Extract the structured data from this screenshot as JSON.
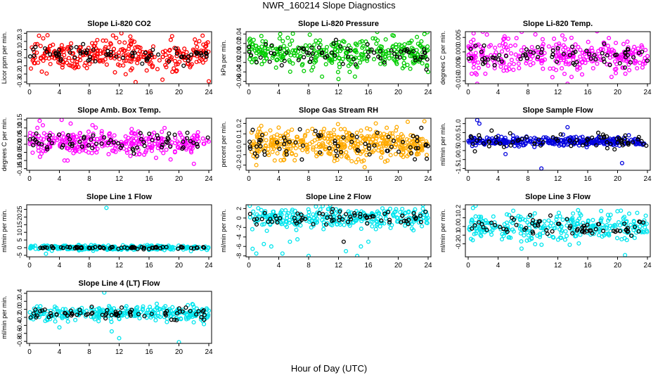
{
  "figure": {
    "title": "NWR_160214  Slope Diagnostics",
    "xlabel": "Hour of Day (UTC)"
  },
  "chart_data": [
    {
      "type": "scatter",
      "title": "Slope Li-820 CO2",
      "ylabel": "Licor ppm per min.",
      "xlim": [
        0,
        24
      ],
      "ylim": [
        -0.32,
        0.32
      ],
      "xticks": [
        "0",
        "4",
        "8",
        "12",
        "16",
        "20",
        "24"
      ],
      "yticks": [
        {
          "v": -0.3,
          "label": "-0.3"
        },
        {
          "v": -0.2,
          "label": "-0.2"
        },
        {
          "v": -0.1,
          "label": "-0.1"
        },
        {
          "v": 0.0,
          "label": "0.0"
        },
        {
          "v": 0.1,
          "label": "0.1"
        },
        {
          "v": 0.2,
          "label": "0.2"
        },
        {
          "v": 0.3,
          "label": "0.3"
        }
      ],
      "series": [
        {
          "color": "#ff0000",
          "center": 0.03,
          "spread": 0.09,
          "n": 320,
          "outliers": [
            [
              12.3,
              0.3
            ],
            [
              13.5,
              0.26
            ],
            [
              14.2,
              -0.3
            ],
            [
              17.8,
              -0.27
            ],
            [
              24,
              -0.29
            ]
          ]
        },
        {
          "color": "#000000",
          "center": 0.03,
          "spread": 0.06,
          "n": 70,
          "outliers": []
        }
      ]
    },
    {
      "type": "scatter",
      "title": "Slope Li-820 Pressure",
      "ylabel": "kPa per min.",
      "xlim": [
        0,
        24
      ],
      "ylim": [
        -0.065,
        0.045
      ],
      "xticks": [
        "0",
        "4",
        "8",
        "12",
        "16",
        "20",
        "24"
      ],
      "yticks": [
        {
          "v": -0.06,
          "label": "-0.06"
        },
        {
          "v": -0.04,
          "label": "-0.04"
        },
        {
          "v": -0.02,
          "label": "-0.02"
        },
        {
          "v": 0.0,
          "label": "0.00"
        },
        {
          "v": 0.02,
          "label": "0.02"
        },
        {
          "v": 0.04,
          "label": "0.04"
        }
      ],
      "series": [
        {
          "color": "#00cc00",
          "center": 0.0,
          "spread": 0.015,
          "n": 330,
          "outliers": [
            [
              4.2,
              0.04
            ],
            [
              9.8,
              -0.05
            ],
            [
              12.0,
              -0.055
            ],
            [
              13.5,
              -0.04
            ],
            [
              14.2,
              -0.05
            ],
            [
              23.5,
              0.04
            ],
            [
              24.0,
              -0.04
            ]
          ]
        },
        {
          "color": "#000000",
          "center": 0.0,
          "spread": 0.012,
          "n": 70,
          "outliers": []
        }
      ]
    },
    {
      "type": "scatter",
      "title": "Slope Li-820 Temp.",
      "ylabel": "degrees C per min.",
      "xlim": [
        0,
        24
      ],
      "ylim": [
        -0.011,
        0.007
      ],
      "xticks": [
        "0",
        "4",
        "8",
        "12",
        "16",
        "20",
        "24"
      ],
      "yticks": [
        {
          "v": -0.01,
          "label": "-0.010"
        },
        {
          "v": -0.005,
          "label": "-0.005"
        },
        {
          "v": 0.0,
          "label": "0.000"
        },
        {
          "v": 0.005,
          "label": "0.005"
        }
      ],
      "series": [
        {
          "color": "#ff00ff",
          "center": -0.001,
          "spread": 0.003,
          "n": 320,
          "outliers": [
            [
              1.2,
              -0.011
            ],
            [
              2.5,
              0.006
            ],
            [
              13.3,
              -0.011
            ]
          ]
        },
        {
          "color": "#000000",
          "center": -0.001,
          "spread": 0.002,
          "n": 70,
          "outliers": []
        }
      ]
    },
    {
      "type": "scatter",
      "title": "Slope Amb. Box Temp.",
      "ylabel": "degrees C per min.",
      "xlim": [
        0,
        24
      ],
      "ylim": [
        -0.16,
        0.16
      ],
      "xticks": [
        "0",
        "4",
        "8",
        "12",
        "16",
        "20",
        "24"
      ],
      "yticks": [
        {
          "v": -0.15,
          "label": "-0.15"
        },
        {
          "v": -0.1,
          "label": "-0.10"
        },
        {
          "v": -0.05,
          "label": "-0.05"
        },
        {
          "v": 0.0,
          "label": "0.00"
        },
        {
          "v": 0.05,
          "label": "0.05"
        },
        {
          "v": 0.1,
          "label": "0.10"
        },
        {
          "v": 0.15,
          "label": "0.15"
        }
      ],
      "series": [
        {
          "color": "#ff00ff",
          "center": 0.01,
          "spread": 0.04,
          "n": 320,
          "outliers": [
            [
              4.3,
              0.15
            ],
            [
              5.1,
              -0.1
            ],
            [
              22.0,
              -0.12
            ]
          ]
        },
        {
          "color": "#000000",
          "center": 0.01,
          "spread": 0.03,
          "n": 70,
          "outliers": []
        }
      ]
    },
    {
      "type": "scatter",
      "title": "Slope Gas Stream RH",
      "ylabel": "percent per min.",
      "xlim": [
        0,
        24
      ],
      "ylim": [
        -0.25,
        0.25
      ],
      "xticks": [
        "0",
        "4",
        "8",
        "12",
        "16",
        "20",
        "24"
      ],
      "yticks": [
        {
          "v": -0.2,
          "label": "-0.2"
        },
        {
          "v": -0.1,
          "label": "-0.1"
        },
        {
          "v": 0.0,
          "label": "0.0"
        },
        {
          "v": 0.1,
          "label": "0.1"
        },
        {
          "v": 0.2,
          "label": "0.2"
        }
      ],
      "series": [
        {
          "color": "#ffaa00",
          "center": 0.0,
          "spread": 0.07,
          "n": 420,
          "outliers": [
            [
              1.0,
              -0.2
            ],
            [
              15.5,
              -0.22
            ],
            [
              17.0,
              0.2
            ],
            [
              23.5,
              0.22
            ]
          ]
        },
        {
          "color": "#000000",
          "center": 0.0,
          "spread": 0.06,
          "n": 70,
          "outliers": []
        }
      ]
    },
    {
      "type": "scatter",
      "title": "Slope Sample Flow",
      "ylabel": "ml/min per min.",
      "xlim": [
        0,
        24
      ],
      "ylim": [
        -1.6,
        1.3
      ],
      "xticks": [
        "0",
        "4",
        "8",
        "12",
        "16",
        "20",
        "24"
      ],
      "yticks": [
        {
          "v": -1.5,
          "label": "-1.5"
        },
        {
          "v": -1.0,
          "label": "-1.0"
        },
        {
          "v": -0.5,
          "label": "-0.5"
        },
        {
          "v": 0.0,
          "label": "0.0"
        },
        {
          "v": 0.5,
          "label": "0.5"
        },
        {
          "v": 1.0,
          "label": "1.0"
        }
      ],
      "series": [
        {
          "color": "#0000dd",
          "center": 0.0,
          "spread": 0.12,
          "n": 330,
          "outliers": [
            [
              1.2,
              1.2
            ],
            [
              1.5,
              1.0
            ],
            [
              9.8,
              -1.5
            ],
            [
              13.3,
              0.8
            ],
            [
              20.6,
              -1.2
            ],
            [
              5.0,
              -0.7
            ]
          ]
        },
        {
          "color": "#000000",
          "center": 0.05,
          "spread": 0.25,
          "n": 70,
          "outliers": []
        }
      ]
    },
    {
      "type": "scatter",
      "title": "Slope Line 1 Flow",
      "ylabel": "ml/min per min.",
      "xlim": [
        0,
        24
      ],
      "ylim": [
        -6,
        28
      ],
      "xticks": [
        "0",
        "4",
        "8",
        "12",
        "16",
        "20",
        "24"
      ],
      "yticks": [
        {
          "v": -5,
          "label": "-5"
        },
        {
          "v": 0,
          "label": "0"
        },
        {
          "v": 5,
          "label": "5"
        },
        {
          "v": 10,
          "label": "10"
        },
        {
          "v": 15,
          "label": "15"
        },
        {
          "v": 20,
          "label": "20"
        },
        {
          "v": 25,
          "label": "25"
        }
      ],
      "series": [
        {
          "color": "#00e5ee",
          "center": 0.0,
          "spread": 0.8,
          "n": 280,
          "outliers": [
            [
              10.3,
              26
            ],
            [
              2.2,
              -4
            ]
          ]
        },
        {
          "color": "#000000",
          "center": 0.0,
          "spread": 0.4,
          "n": 70,
          "outliers": []
        }
      ]
    },
    {
      "type": "scatter",
      "title": "Slope Line 2 Flow",
      "ylabel": "ml/min per min.",
      "xlim": [
        0,
        24
      ],
      "ylim": [
        -8.2,
        2.8
      ],
      "xticks": [
        "0",
        "4",
        "8",
        "12",
        "16",
        "20",
        "24"
      ],
      "yticks": [
        {
          "v": -8,
          "label": "-8"
        },
        {
          "v": -6,
          "label": "-6"
        },
        {
          "v": -4,
          "label": "-4"
        },
        {
          "v": -2,
          "label": "-2"
        },
        {
          "v": 0,
          "label": "0"
        },
        {
          "v": 2,
          "label": "2"
        }
      ],
      "series": [
        {
          "color": "#00e5ee",
          "center": 0.0,
          "spread": 1.0,
          "n": 300,
          "outliers": [
            [
              0.5,
              -6.5
            ],
            [
              1.0,
              -7.5
            ],
            [
              2.0,
              -5.5
            ],
            [
              3.0,
              -6.0
            ],
            [
              4.5,
              -7.5
            ],
            [
              5.5,
              -5.0
            ],
            [
              6.5,
              -4.5
            ],
            [
              8.0,
              -8.0
            ],
            [
              13.0,
              -7.0
            ],
            [
              14.5,
              -8.0
            ],
            [
              15.0,
              -6.0
            ],
            [
              16.0,
              -5.0
            ]
          ]
        },
        {
          "color": "#000000",
          "center": 0.0,
          "spread": 0.8,
          "n": 70,
          "outliers": [
            [
              12.7,
              -5.0
            ]
          ]
        }
      ]
    },
    {
      "type": "scatter",
      "title": "Slope Line 3 Flow",
      "ylabel": "ml/min per min.",
      "xlim": [
        0,
        24
      ],
      "ylim": [
        -0.35,
        0.25
      ],
      "xticks": [
        "0",
        "4",
        "8",
        "12",
        "16",
        "20",
        "24"
      ],
      "yticks": [
        {
          "v": -0.2,
          "label": "-0.2"
        },
        {
          "v": -0.1,
          "label": "-0.1"
        },
        {
          "v": 0.0,
          "label": "0.0"
        },
        {
          "v": 0.1,
          "label": "0.1"
        },
        {
          "v": 0.2,
          "label": "0.2"
        }
      ],
      "series": [
        {
          "color": "#00e5ee",
          "center": -0.01,
          "spread": 0.08,
          "n": 300,
          "outliers": [
            [
              1.0,
              0.24
            ],
            [
              21.0,
              -0.33
            ]
          ]
        },
        {
          "color": "#000000",
          "center": -0.01,
          "spread": 0.06,
          "n": 70,
          "outliers": []
        }
      ]
    },
    {
      "type": "scatter",
      "title": "Slope Line 4 (LT) Flow",
      "ylabel": "ml/min per min.",
      "xlim": [
        0,
        24
      ],
      "ylim": [
        -0.85,
        0.45
      ],
      "xticks": [
        "0",
        "4",
        "8",
        "12",
        "16",
        "20",
        "24"
      ],
      "yticks": [
        {
          "v": -0.8,
          "label": "-0.8"
        },
        {
          "v": -0.6,
          "label": "-0.6"
        },
        {
          "v": -0.4,
          "label": "-0.4"
        },
        {
          "v": -0.2,
          "label": "-0.2"
        },
        {
          "v": 0.0,
          "label": "0.0"
        },
        {
          "v": 0.2,
          "label": "0.2"
        },
        {
          "v": 0.4,
          "label": "0.4"
        }
      ],
      "series": [
        {
          "color": "#00e5ee",
          "center": -0.1,
          "spread": 0.09,
          "n": 300,
          "outliers": [
            [
              10.0,
              0.42
            ],
            [
              4.0,
              -0.45
            ],
            [
              11.0,
              -0.55
            ],
            [
              12.0,
              -0.72
            ],
            [
              20.0,
              -0.82
            ]
          ]
        },
        {
          "color": "#000000",
          "center": -0.1,
          "spread": 0.08,
          "n": 70,
          "outliers": []
        }
      ]
    }
  ]
}
